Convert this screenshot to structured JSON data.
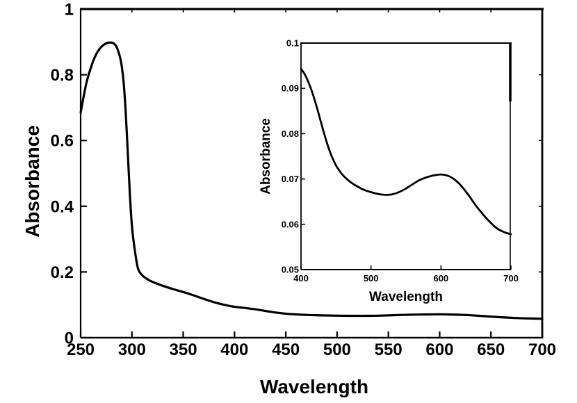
{
  "figure": {
    "background": "#ffffff",
    "line_color": "#000000",
    "description_colors": {
      "curve": "#000000",
      "axes": "#000000",
      "text": "#000000"
    }
  },
  "chart_data": [
    {
      "id": "main",
      "type": "line",
      "role": "main-axes",
      "title": "",
      "xlabel": "Wavelength",
      "ylabel": "Absorbance",
      "xlim": [
        250,
        700
      ],
      "ylim": [
        0,
        1
      ],
      "grid": false,
      "legend": null,
      "xticks": [
        250,
        300,
        350,
        400,
        450,
        500,
        550,
        600,
        650,
        700
      ],
      "xtick_labels": [
        "250",
        "300",
        "350",
        "400",
        "450",
        "500",
        "550",
        "600",
        "650",
        "700"
      ],
      "yticks": [
        0,
        0.2,
        0.4,
        0.6,
        0.8,
        1
      ],
      "ytick_labels": [
        "0",
        "0.2",
        "0.4",
        "0.6",
        "0.8",
        "1"
      ],
      "x": [
        250,
        253,
        256,
        260,
        264,
        268,
        272,
        276,
        279,
        282,
        285,
        288,
        290,
        292,
        294,
        296,
        298,
        300,
        303,
        306,
        310,
        315,
        320,
        330,
        340,
        350,
        360,
        370,
        380,
        390,
        400,
        410,
        420,
        430,
        440,
        450,
        460,
        470,
        480,
        490,
        500,
        510,
        520,
        530,
        540,
        550,
        560,
        570,
        580,
        590,
        600,
        610,
        620,
        630,
        640,
        650,
        660,
        670,
        680,
        690,
        700
      ],
      "y": [
        0.685,
        0.735,
        0.78,
        0.822,
        0.855,
        0.877,
        0.89,
        0.897,
        0.898,
        0.896,
        0.885,
        0.858,
        0.828,
        0.773,
        0.683,
        0.56,
        0.437,
        0.34,
        0.262,
        0.21,
        0.19,
        0.178,
        0.17,
        0.158,
        0.148,
        0.139,
        0.129,
        0.118,
        0.108,
        0.1,
        0.094,
        0.0905,
        0.0865,
        0.0815,
        0.0766,
        0.073,
        0.0708,
        0.0694,
        0.0684,
        0.0676,
        0.0671,
        0.0667,
        0.0665,
        0.0666,
        0.0671,
        0.0679,
        0.0689,
        0.0698,
        0.0704,
        0.0708,
        0.071,
        0.0707,
        0.0698,
        0.0683,
        0.0663,
        0.0641,
        0.0622,
        0.0605,
        0.0591,
        0.0583,
        0.0578
      ]
    },
    {
      "id": "inset",
      "type": "line",
      "role": "inset-axes",
      "title": "",
      "xlabel": "Wavelength",
      "ylabel": "Absorbance",
      "xlim": [
        400,
        700
      ],
      "ylim": [
        0.05,
        0.1
      ],
      "grid": false,
      "legend": null,
      "xticks": [
        400,
        500,
        600,
        700
      ],
      "xtick_labels": [
        "400",
        "500",
        "600",
        "700"
      ],
      "yticks": [
        0.05,
        0.06,
        0.07,
        0.08,
        0.09,
        0.1
      ],
      "ytick_labels": [
        "0.05",
        "0.06",
        "0.07",
        "0.08",
        "0.09",
        "0.1"
      ],
      "x": [
        400,
        405,
        410,
        415,
        420,
        425,
        430,
        435,
        440,
        445,
        450,
        455,
        460,
        470,
        480,
        490,
        500,
        510,
        520,
        530,
        540,
        550,
        560,
        570,
        580,
        590,
        600,
        610,
        620,
        630,
        640,
        650,
        660,
        670,
        680,
        690,
        700
      ],
      "y": [
        0.0943,
        0.0932,
        0.0916,
        0.0896,
        0.0872,
        0.0845,
        0.0817,
        0.079,
        0.0766,
        0.0746,
        0.073,
        0.0718,
        0.0708,
        0.0694,
        0.0684,
        0.0676,
        0.0671,
        0.0667,
        0.0665,
        0.0666,
        0.0671,
        0.0679,
        0.0689,
        0.0698,
        0.0704,
        0.0708,
        0.071,
        0.0707,
        0.0698,
        0.0683,
        0.0663,
        0.0641,
        0.0622,
        0.0605,
        0.0591,
        0.0583,
        0.0578
      ]
    }
  ]
}
